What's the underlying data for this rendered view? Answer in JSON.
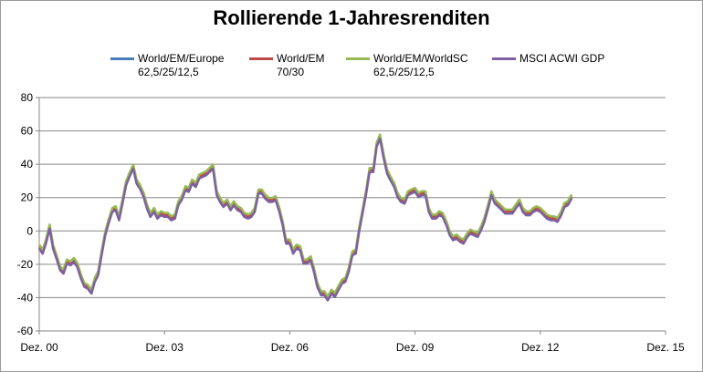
{
  "chart_data": {
    "type": "line",
    "title": "Rollierende 1-Jahresrenditen",
    "xlabel": "",
    "ylabel": "",
    "xlim": [
      2000.92,
      2015.92
    ],
    "ylim": [
      -60,
      80
    ],
    "y_ticks": [
      80,
      60,
      40,
      20,
      0,
      -20,
      -40,
      -60
    ],
    "x_ticks": [
      {
        "label": "Dez. 00",
        "value": 2000.92
      },
      {
        "label": "Dez. 03",
        "value": 2003.92
      },
      {
        "label": "Dez. 06",
        "value": 2006.92
      },
      {
        "label": "Dez. 09",
        "value": 2009.92
      },
      {
        "label": "Dez. 12",
        "value": 2012.92
      },
      {
        "label": "Dez. 15",
        "value": 2015.92
      }
    ],
    "grid": {
      "horizontal": true,
      "vertical": false
    },
    "legend_position": "top",
    "base_x": [
      2000.92,
      2001.0,
      2001.08,
      2001.17,
      2001.25,
      2001.33,
      2001.42,
      2001.5,
      2001.58,
      2001.67,
      2001.75,
      2001.83,
      2001.92,
      2002.0,
      2002.08,
      2002.17,
      2002.25,
      2002.33,
      2002.42,
      2002.5,
      2002.58,
      2002.67,
      2002.75,
      2002.83,
      2002.92,
      2003.0,
      2003.08,
      2003.17,
      2003.25,
      2003.33,
      2003.42,
      2003.5,
      2003.58,
      2003.67,
      2003.75,
      2003.83,
      2003.92,
      2004.0,
      2004.08,
      2004.17,
      2004.25,
      2004.33,
      2004.42,
      2004.5,
      2004.58,
      2004.67,
      2004.75,
      2004.83,
      2004.92,
      2005.0,
      2005.08,
      2005.17,
      2005.25,
      2005.33,
      2005.42,
      2005.5,
      2005.58,
      2005.67,
      2005.75,
      2005.83,
      2005.92,
      2006.0,
      2006.08,
      2006.17,
      2006.25,
      2006.33,
      2006.42,
      2006.5,
      2006.58,
      2006.67,
      2006.75,
      2006.83,
      2006.92,
      2007.0,
      2007.08,
      2007.17,
      2007.25,
      2007.33,
      2007.42,
      2007.5,
      2007.58,
      2007.67,
      2007.75,
      2007.83,
      2007.92,
      2008.0,
      2008.08,
      2008.17,
      2008.25,
      2008.33,
      2008.42,
      2008.5,
      2008.58,
      2008.67,
      2008.75,
      2008.83,
      2008.92,
      2009.0,
      2009.08,
      2009.17,
      2009.25,
      2009.33,
      2009.42,
      2009.5,
      2009.58,
      2009.67,
      2009.75,
      2009.83,
      2009.92,
      2010.0,
      2010.08,
      2010.17,
      2010.25,
      2010.33,
      2010.42,
      2010.5,
      2010.58,
      2010.67,
      2010.75,
      2010.83,
      2010.92,
      2011.0,
      2011.08,
      2011.17,
      2011.25,
      2011.33,
      2011.42,
      2011.5,
      2011.58,
      2011.67,
      2011.75,
      2011.83,
      2011.92,
      2012.0,
      2012.08,
      2012.17,
      2012.25,
      2012.33,
      2012.42,
      2012.5,
      2012.58,
      2012.67,
      2012.75,
      2012.83,
      2012.92,
      2013.0,
      2013.08,
      2013.17,
      2013.25,
      2013.33,
      2013.42,
      2013.5,
      2013.58,
      2013.67
    ],
    "base_y": [
      -10,
      -13,
      -7,
      2,
      -10,
      -16,
      -23,
      -25,
      -19,
      -20,
      -18,
      -21,
      -28,
      -33,
      -34,
      -37,
      -30,
      -26,
      -13,
      -2,
      5,
      12,
      13,
      7,
      18,
      28,
      33,
      38,
      29,
      26,
      21,
      14,
      9,
      12,
      8,
      10,
      9,
      9,
      7,
      8,
      16,
      19,
      25,
      24,
      29,
      27,
      32,
      33,
      34,
      36,
      38,
      22,
      18,
      15,
      17,
      13,
      16,
      13,
      12,
      9,
      8,
      9,
      12,
      23,
      23,
      20,
      18,
      18,
      19,
      12,
      4,
      -7,
      -7,
      -13,
      -10,
      -11,
      -19,
      -19,
      -17,
      -24,
      -33,
      -38,
      -38,
      -41,
      -37,
      -39,
      -35,
      -31,
      -30,
      -24,
      -14,
      -13,
      0,
      12,
      23,
      36,
      36,
      51,
      56,
      44,
      35,
      31,
      27,
      21,
      18,
      17,
      22,
      23,
      24,
      21,
      22,
      22,
      12,
      8,
      8,
      10,
      9,
      4,
      -2,
      -5,
      -4,
      -6,
      -7,
      -3,
      -1,
      -2,
      -3,
      1,
      6,
      14,
      22,
      17,
      15,
      13,
      11,
      11,
      11,
      14,
      17,
      12,
      10,
      10,
      12,
      13,
      12,
      10,
      8,
      7,
      7,
      6,
      10,
      15,
      16,
      20
    ],
    "series": [
      {
        "name": "World/EM/Europe",
        "subtitle": "62,5/25/12,5",
        "color": "#4a7ebb",
        "offset": 0.0
      },
      {
        "name": "World/EM",
        "subtitle": "70/30",
        "color": "#be4b48",
        "offset": 0.8
      },
      {
        "name": "World/EM/WorldSC",
        "subtitle": "62,5/25/12,5",
        "color": "#98b954",
        "offset": 1.8
      },
      {
        "name": "MSCI ACWI GDP",
        "subtitle": "",
        "color": "#7d60a0",
        "offset": -0.6
      }
    ]
  }
}
